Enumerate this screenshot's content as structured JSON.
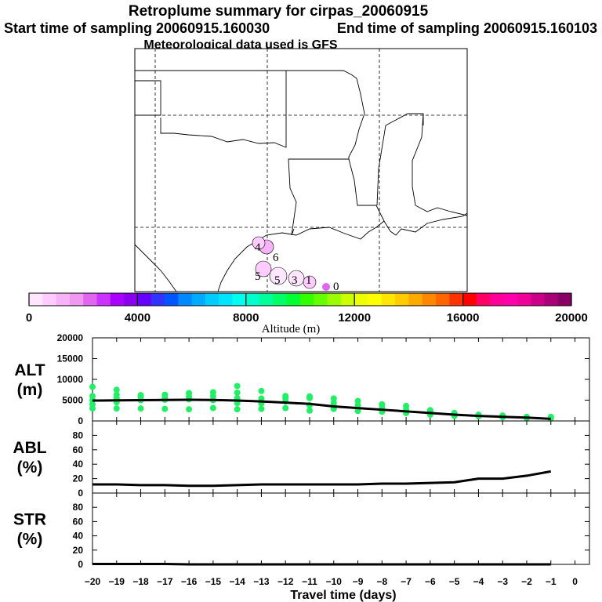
{
  "header": {
    "title": "Retroplume summary for cirpas_20060915",
    "start_label": "Start time of sampling 20060915.160030",
    "end_label": "End time of sampling 20060915.160103",
    "met_label": "Meteorological data used is GFS"
  },
  "colorbar": {
    "label": "Altitude (m)",
    "tick_labels": [
      "0",
      "4000",
      "8000",
      "12000",
      "16000",
      "20000"
    ],
    "colors": [
      "#ffe6ff",
      "#ffccff",
      "#f7b3f7",
      "#f099f0",
      "#e066f0",
      "#cc33ff",
      "#aa00ff",
      "#8800ee",
      "#6600ff",
      "#3333ff",
      "#0055ff",
      "#0088ff",
      "#00aaff",
      "#00ccff",
      "#00e5ff",
      "#00ffee",
      "#00ffcc",
      "#00ff99",
      "#00ff66",
      "#00ff33",
      "#33ff00",
      "#66ff00",
      "#99ff00",
      "#ccff00",
      "#eeff00",
      "#ffff00",
      "#ffe600",
      "#ffcc00",
      "#ffaa00",
      "#ff8800",
      "#ff6600",
      "#ff3300",
      "#ff0000",
      "#ff0066",
      "#ff0099",
      "#ff00aa",
      "#ee0099",
      "#cc0088",
      "#aa0077",
      "#880066"
    ]
  },
  "map": {
    "plume_labels": [
      "4",
      "6",
      "5",
      "5",
      "3",
      "1",
      "0"
    ]
  },
  "chart_data": [
    {
      "type": "scatter+line",
      "panel": "altitude",
      "ylabel": "ALT\n(m)",
      "ylabel_top": "ALT",
      "ylabel_bottom": "(m)",
      "ylim": [
        0,
        20000
      ],
      "yticks": [
        "20000",
        "15000",
        "10000",
        "5000",
        "0"
      ],
      "x": [
        -20,
        -19,
        -18,
        -17,
        -16,
        -15,
        -14,
        -13,
        -12,
        -11,
        -10,
        -9,
        -8,
        -7,
        -6,
        -5,
        -4,
        -3,
        -2,
        -1
      ],
      "mean_altitude": [
        4900,
        4950,
        5000,
        5050,
        5100,
        5050,
        4900,
        4700,
        4400,
        4100,
        3500,
        3100,
        2700,
        2300,
        1900,
        1500,
        1200,
        1000,
        800,
        500
      ],
      "point_clusters": [
        [
          3000,
          4000,
          5000,
          6000,
          8200
        ],
        [
          3000,
          4500,
          5500,
          6300,
          7500
        ],
        [
          3000,
          5000,
          5700,
          6200
        ],
        [
          2900,
          5100,
          5600,
          6300
        ],
        [
          2800,
          5200,
          5900,
          6700
        ],
        [
          3100,
          5000,
          6000,
          6900
        ],
        [
          2800,
          4300,
          5500,
          6800,
          8400
        ],
        [
          2900,
          4200,
          5400,
          7200
        ],
        [
          3100,
          4700,
          5500,
          6000
        ],
        [
          2500,
          3800,
          5500,
          5900
        ],
        [
          2900,
          3600,
          4400,
          5400
        ],
        [
          2400,
          3800,
          4800
        ],
        [
          2200,
          3200,
          4000
        ],
        [
          1900,
          2800,
          3600
        ],
        [
          1500,
          2100,
          2600
        ],
        [
          1200,
          1900
        ],
        [
          1100,
          1500
        ],
        [
          900,
          1300
        ],
        [
          700,
          1000
        ],
        [
          600,
          1000
        ]
      ]
    },
    {
      "type": "line",
      "panel": "abl",
      "ylabel_top": "ABL",
      "ylabel_bottom": "(%)",
      "ylim": [
        0,
        100
      ],
      "yticks": [
        "80",
        "60",
        "40",
        "20",
        "0"
      ],
      "x": [
        -20,
        -19,
        -18,
        -17,
        -16,
        -15,
        -14,
        -13,
        -12,
        -11,
        -10,
        -9,
        -8,
        -7,
        -6,
        -5,
        -4,
        -3,
        -2,
        -1
      ],
      "values": [
        12,
        12,
        11,
        11,
        10,
        10,
        11,
        12,
        12,
        12,
        12,
        12,
        13,
        13,
        14,
        15,
        20,
        20,
        24,
        30
      ]
    },
    {
      "type": "line",
      "panel": "str",
      "ylabel_top": "STR",
      "ylabel_bottom": "(%)",
      "ylim": [
        0,
        100
      ],
      "yticks": [
        "80",
        "60",
        "40",
        "20",
        "0"
      ],
      "x": [
        -20,
        -19,
        -18,
        -17,
        -16,
        -15,
        -14,
        -13,
        -12,
        -11,
        -10,
        -9,
        -8,
        -7,
        -6,
        -5,
        -4,
        -3,
        -2,
        -1
      ],
      "values": [
        0.5,
        0.5,
        0.5,
        0.5,
        0,
        0,
        0,
        0,
        0,
        0,
        0,
        0,
        0,
        0,
        0,
        0,
        0,
        0,
        0,
        0
      ],
      "xlabel": "Travel time (days)",
      "xticks": [
        "−20",
        "−19",
        "−18",
        "−17",
        "−16",
        "−15",
        "−14",
        "−13",
        "−12",
        "−11",
        "−10",
        "−9",
        "−8",
        "−7",
        "−6",
        "−5",
        "−4",
        "−3",
        "−2",
        "−1",
        "0"
      ]
    }
  ]
}
